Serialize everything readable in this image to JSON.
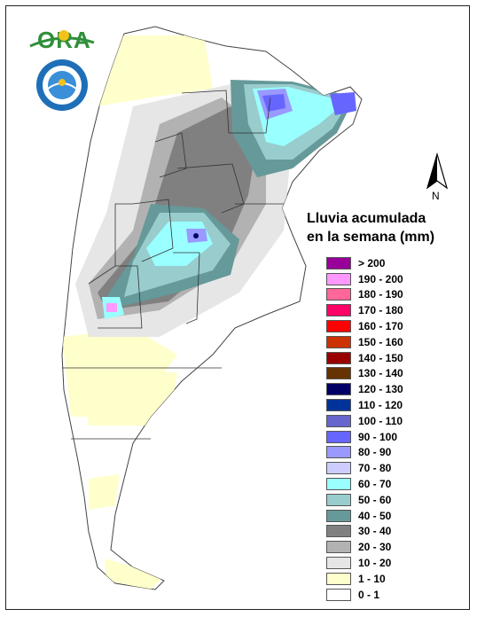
{
  "logo": {
    "text": "ORA",
    "icon": "ora-logo-icon"
  },
  "seal": {
    "icon": "servicio-meteorologico-seal-icon"
  },
  "north_arrow": {
    "label": "N"
  },
  "legend": {
    "title_line1": "Lluvia acumulada",
    "title_line2": "en la semana (mm)",
    "items": [
      {
        "label": "> 200",
        "color": "#990099"
      },
      {
        "label": "190 - 200",
        "color": "#ff99ff"
      },
      {
        "label": "180 - 190",
        "color": "#ff6699"
      },
      {
        "label": "170 - 180",
        "color": "#ff0066"
      },
      {
        "label": "160 - 170",
        "color": "#ff0000"
      },
      {
        "label": "150 - 160",
        "color": "#cc3300"
      },
      {
        "label": "140 - 150",
        "color": "#990000"
      },
      {
        "label": "130 - 140",
        "color": "#663300"
      },
      {
        "label": "120 - 130",
        "color": "#000066"
      },
      {
        "label": "110 - 120",
        "color": "#003399"
      },
      {
        "label": "100 - 110",
        "color": "#6666cc"
      },
      {
        "label": "90 - 100",
        "color": "#6666ff"
      },
      {
        "label": "80 - 90",
        "color": "#9999ff"
      },
      {
        "label": "70 - 80",
        "color": "#ccccff"
      },
      {
        "label": "60 - 70",
        "color": "#99ffff"
      },
      {
        "label": "50 - 60",
        "color": "#99cccc"
      },
      {
        "label": "40 - 50",
        "color": "#669999"
      },
      {
        "label": "30 - 40",
        "color": "#808080"
      },
      {
        "label": "20 - 30",
        "color": "#b2b2b2"
      },
      {
        "label": "10 - 20",
        "color": "#e6e6e6"
      },
      {
        "label": "1 - 10",
        "color": "#ffffcc"
      },
      {
        "label": "0 - 1",
        "color": "#ffffff"
      }
    ]
  }
}
